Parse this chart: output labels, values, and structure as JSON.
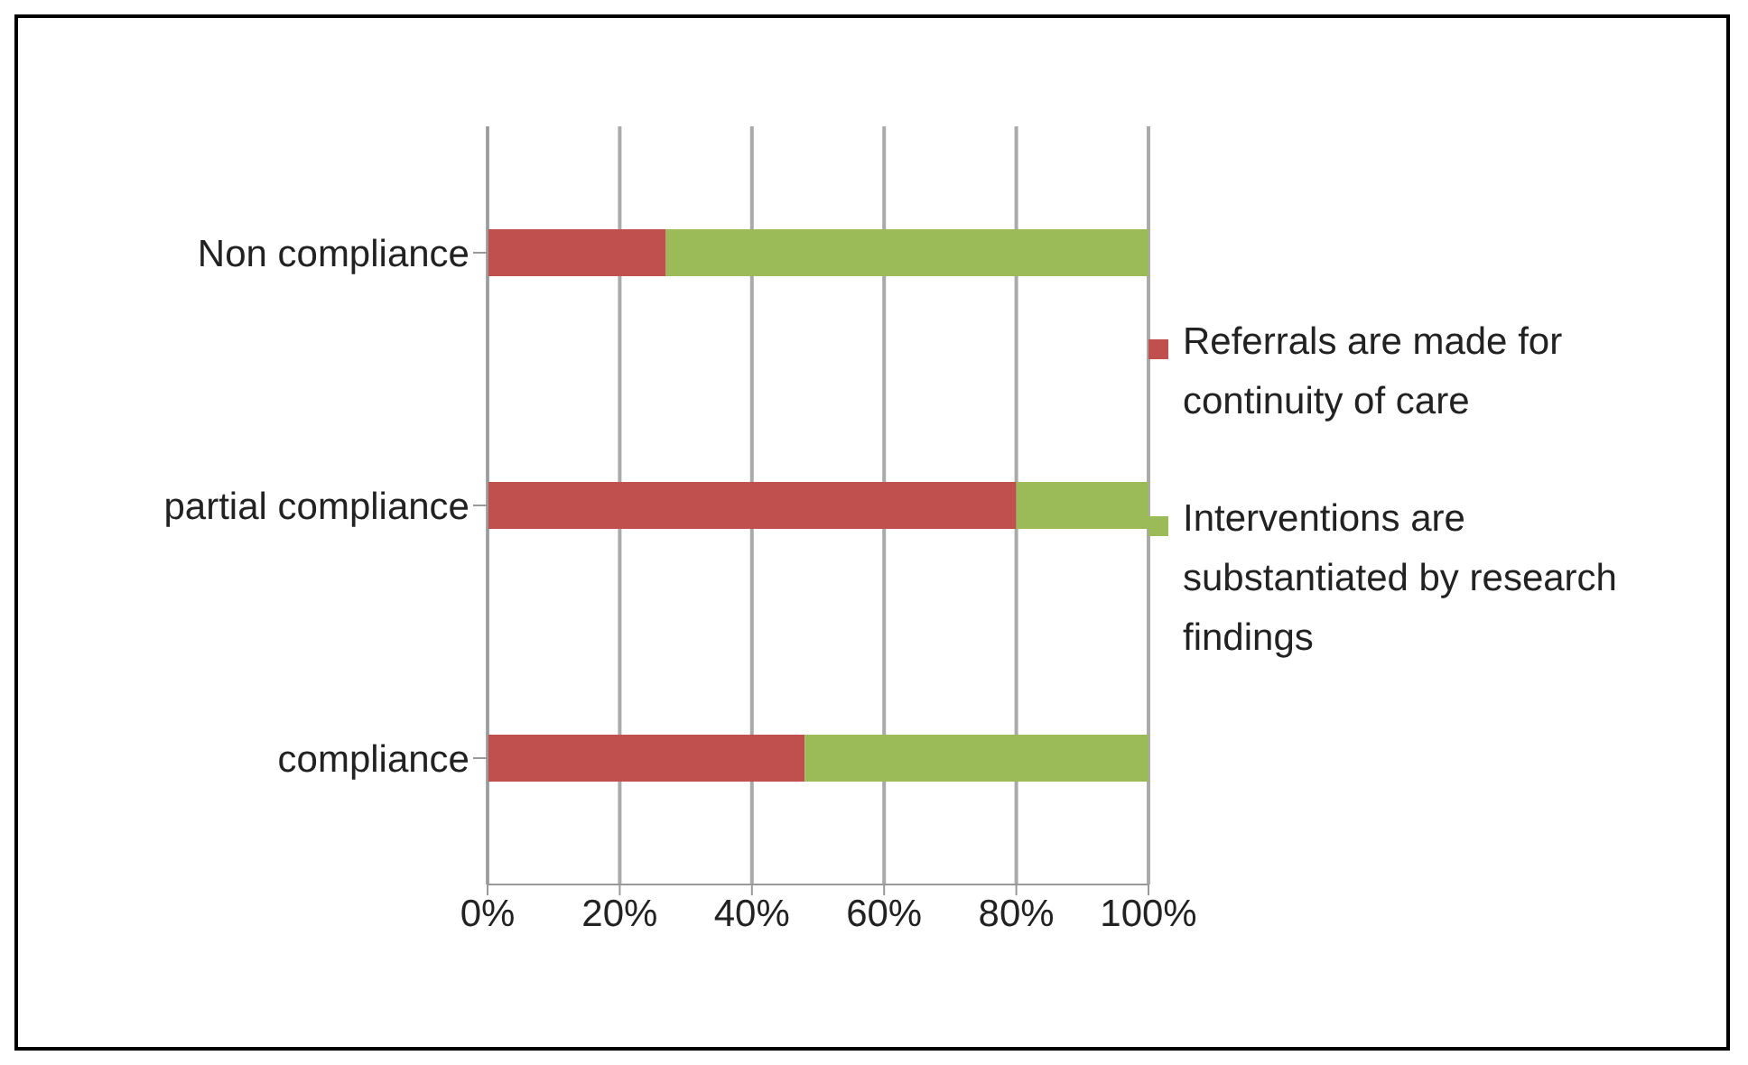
{
  "chart_data": {
    "type": "bar",
    "orientation": "horizontal",
    "stacked": true,
    "categories": [
      "Non compliance",
      "partial compliance",
      "compliance"
    ],
    "series": [
      {
        "name": "Referrals are made for continuity of care",
        "color": "#c0504d",
        "values": [
          27,
          80,
          48
        ]
      },
      {
        "name": "Interventions are substantiated by research findings",
        "color": "#9bbb59",
        "values": [
          73,
          20,
          52
        ]
      }
    ],
    "xlim": [
      0,
      100
    ],
    "xticks": [
      {
        "value": 0,
        "label": "0%"
      },
      {
        "value": 20,
        "label": "20%"
      },
      {
        "value": 40,
        "label": "40%"
      },
      {
        "value": 60,
        "label": "60%"
      },
      {
        "value": 80,
        "label": "80%"
      },
      {
        "value": 100,
        "label": "100%"
      }
    ],
    "grid": "x",
    "legend": "right"
  }
}
